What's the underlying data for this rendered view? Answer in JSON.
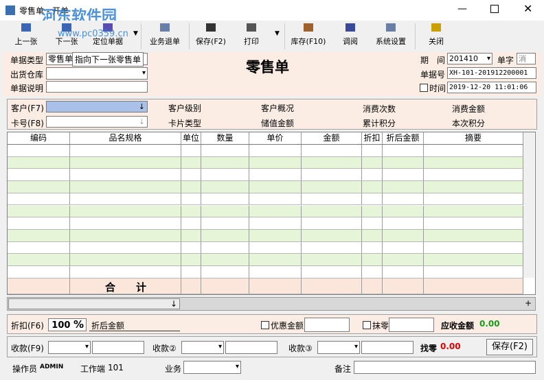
{
  "window": {
    "title": "零售单 - 开单",
    "watermark": "河东软件园",
    "watermark_url": "www.pc0359.cn"
  },
  "toolbar": [
    "上一张",
    "下一张",
    "定位单据",
    "业务退单",
    "保存(F2)",
    "打印",
    "库存(F10)",
    "调阅",
    "系统设置",
    "关闭"
  ],
  "header": {
    "doc_type_label": "单据类型",
    "doc_type": "零售单",
    "tooltip": "指向下一张零售单",
    "warehouse_label": "出货仓库",
    "note_label": "单据说明",
    "title": "零售单",
    "period_label": "期　间",
    "period": "201410",
    "prefix_label": "单字",
    "prefix": "消",
    "number_label": "单据号",
    "number": "XH-101-201912200001",
    "time_label": "时间",
    "time": "2019-12-20 11:01:06"
  },
  "customer": {
    "customer_label": "客户(F7)",
    "card_label": "卡号(F8)",
    "level": "客户级别",
    "overview": "客户概况",
    "visits": "消费次数",
    "spend": "消费金额",
    "card_type": "卡片类型",
    "stored": "储值金额",
    "points_total": "累计积分",
    "points_now": "本次积分"
  },
  "table": {
    "columns": [
      "编码",
      "品名规格",
      "单位",
      "数量",
      "单价",
      "金额",
      "折扣",
      "折后金额",
      "摘要"
    ],
    "total_label": "合　　计"
  },
  "footer": {
    "discount_label": "折扣(F6)",
    "discount": "100",
    "percent": "%",
    "discounted_label": "折后金额",
    "promo_label": "优惠金额",
    "round_label": "抹零",
    "receivable_label": "应收金额",
    "receivable": "0.00",
    "pay1_label": "收款(F9)",
    "pay2_label": "收款②",
    "pay3_label": "收款③",
    "change_label": "找零",
    "change": "0.00",
    "save_button": "保存(F2)",
    "operator_label": "操作员",
    "operator": "ADMIN",
    "terminal_label": "工作端",
    "terminal": "101",
    "business_label": "业务",
    "remark_label": "备注"
  }
}
